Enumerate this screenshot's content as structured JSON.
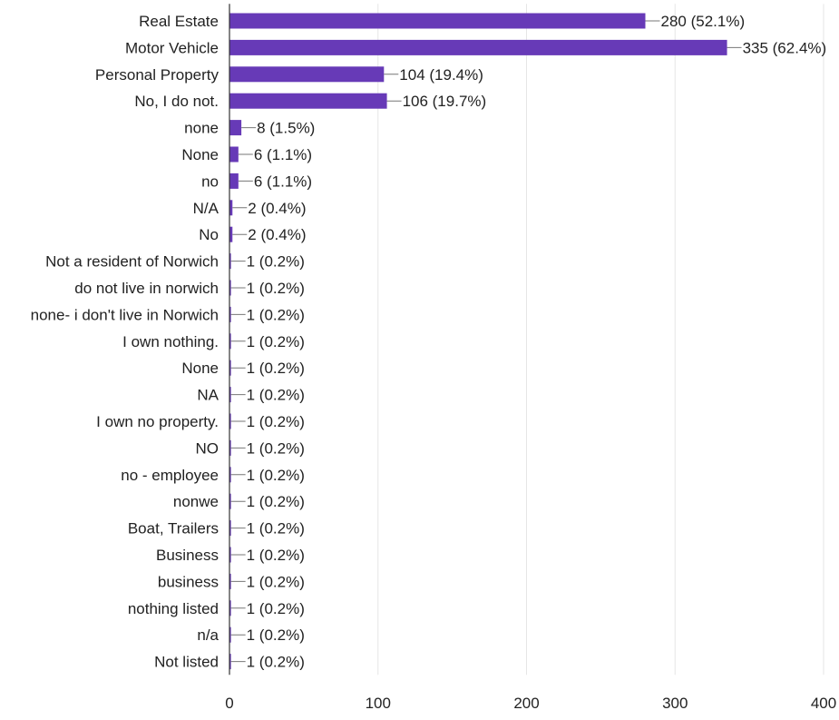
{
  "chart_data": {
    "type": "bar",
    "orientation": "horizontal",
    "title": "",
    "xlabel": "",
    "ylabel": "",
    "xlim": [
      0,
      400
    ],
    "xticks": [
      0,
      100,
      200,
      300,
      400
    ],
    "grid": "vertical",
    "colors": {
      "bar": "#673ab7",
      "grid": "#e6e6e6",
      "axis": "#333333",
      "leader": "#777777",
      "text": "#222222"
    },
    "categories": [
      "Real Estate",
      "Motor Vehicle",
      "Personal Property",
      "No, I do not.",
      "none",
      "None",
      "no",
      "N/A",
      "No",
      "Not a resident of Norwich",
      "do not live in norwich",
      "none- i don't live in Norwich",
      "I own nothing.",
      "None",
      "NA",
      "I own no property.",
      "NO",
      "no - employee",
      "nonwe",
      "Boat, Trailers",
      "Business",
      "business",
      "nothing listed",
      "n/a",
      "Not listed"
    ],
    "values": [
      280,
      335,
      104,
      106,
      8,
      6,
      6,
      2,
      2,
      1,
      1,
      1,
      1,
      1,
      1,
      1,
      1,
      1,
      1,
      1,
      1,
      1,
      1,
      1,
      1
    ],
    "data_labels": [
      "280 (52.1%)",
      "335 (62.4%)",
      "104 (19.4%)",
      "106 (19.7%)",
      "8 (1.5%)",
      "6 (1.1%)",
      "6 (1.1%)",
      "2 (0.4%)",
      "2 (0.4%)",
      "1 (0.2%)",
      "1 (0.2%)",
      "1 (0.2%)",
      "1 (0.2%)",
      "1 (0.2%)",
      "1 (0.2%)",
      "1 (0.2%)",
      "1 (0.2%)",
      "1 (0.2%)",
      "1 (0.2%)",
      "1 (0.2%)",
      "1 (0.2%)",
      "1 (0.2%)",
      "1 (0.2%)",
      "1 (0.2%)",
      "1 (0.2%)"
    ]
  }
}
